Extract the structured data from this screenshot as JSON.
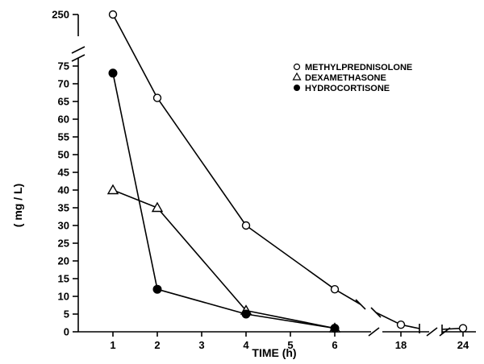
{
  "chart_data": {
    "type": "line",
    "title": "",
    "xlabel": "TIME (h)",
    "ylabel": "( mg / L)",
    "x_ticks": [
      "1",
      "2",
      "3",
      "4",
      "5",
      "6",
      "18",
      "24"
    ],
    "y_ticks": [
      "0",
      "5",
      "10",
      "15",
      "20",
      "25",
      "30",
      "35",
      "40",
      "45",
      "50",
      "55",
      "60",
      "65",
      "70",
      "75",
      "250"
    ],
    "ylim": [
      0,
      250
    ],
    "axis_breaks": {
      "x": "between 6 and 18, and between 18 and 24",
      "y": "between 75 and 250"
    },
    "grid": false,
    "legend_position": "top-right",
    "series": [
      {
        "name": "METHYLPREDNISOLONE",
        "marker": "open-circle",
        "x": [
          1,
          2,
          4,
          6,
          18,
          24
        ],
        "y": [
          250,
          66,
          30,
          12,
          2,
          1
        ]
      },
      {
        "name": "DEXAMETHASONE",
        "marker": "open-triangle",
        "x": [
          1,
          2,
          4,
          6
        ],
        "y": [
          40,
          35,
          6,
          1
        ]
      },
      {
        "name": "HYDROCORTISONE",
        "marker": "filled-circle",
        "x": [
          1,
          2,
          4,
          6
        ],
        "y": [
          73,
          12,
          5,
          1
        ]
      }
    ]
  }
}
